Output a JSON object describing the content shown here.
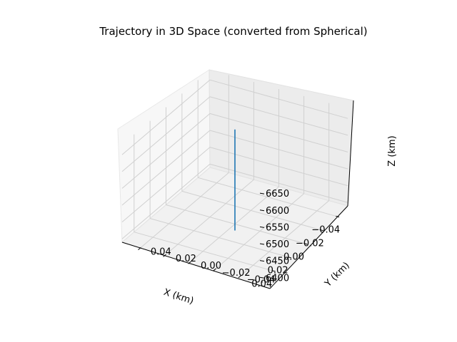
{
  "chart_data": {
    "type": "line",
    "projection": "3d",
    "title": "Trajectory in 3D Space (converted from Spherical)",
    "xlabel": "X (km)",
    "ylabel": "Y (km)",
    "zlabel": "Z (km)",
    "xlim": [
      -0.055,
      0.055
    ],
    "ylim": [
      -0.055,
      0.055
    ],
    "zlim": [
      6390,
      6680
    ],
    "xticks": [
      -0.04,
      -0.02,
      0.0,
      0.02,
      0.04
    ],
    "yticks": [
      -0.04,
      -0.02,
      0.0,
      0.02,
      0.04
    ],
    "zticks": [
      6400,
      6450,
      6500,
      6550,
      6600,
      6650
    ],
    "xtick_labels": [
      "−0.04",
      "−0.02",
      "0.00",
      "0.02",
      "0.04"
    ],
    "ytick_labels": [
      "−0.04",
      "−0.02",
      "0.00",
      "0.02",
      "0.04"
    ],
    "ztick_labels": [
      "6400",
      "6450",
      "6500",
      "6550",
      "6600",
      "6650"
    ],
    "grid": true,
    "series": [
      {
        "color": "#1f77b4",
        "x": [
          0.0,
          0.0
        ],
        "y": [
          0.0,
          0.0
        ],
        "z": [
          6371,
          6671
        ]
      }
    ]
  }
}
